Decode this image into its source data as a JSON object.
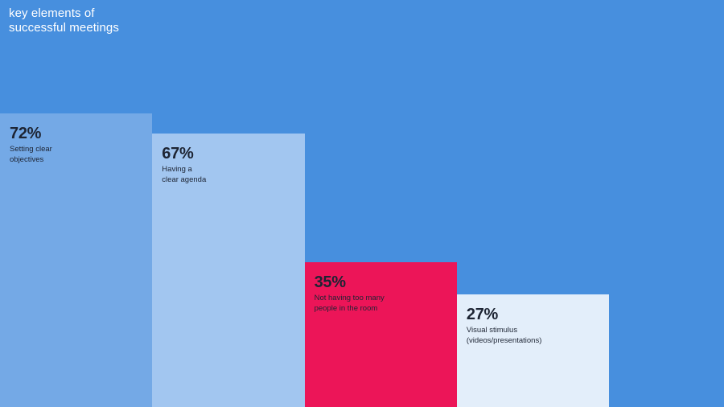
{
  "title": {
    "line1": "key elements of",
    "line2": "successful meetings"
  },
  "colors": {
    "background": "#478fde",
    "text_dark": "#1d2433",
    "title_text": "#ffffff"
  },
  "chart_data": {
    "type": "bar",
    "title": "key elements of successful meetings",
    "categories": [
      "Setting clear objectives",
      "Having a clear agenda",
      "Not having too many people in the room",
      "Visual stimulus (videos/presentations)"
    ],
    "values": [
      72,
      67,
      35,
      27
    ],
    "unit": "%",
    "bars": [
      {
        "value_label": "72%",
        "label": "Setting clear\nobjectives",
        "color": "#74a9e6"
      },
      {
        "value_label": "67%",
        "label": "Having a\nclear agenda",
        "color": "#a2c6f0"
      },
      {
        "value_label": "35%",
        "label": "Not having too many\npeople in the room",
        "color": "#ec1558"
      },
      {
        "value_label": "27%",
        "label": "Visual stimulus\n(videos/presentations)",
        "color": "#e3eefa"
      }
    ],
    "ylim": [
      0,
      100
    ],
    "grid": false,
    "legend": "none"
  }
}
